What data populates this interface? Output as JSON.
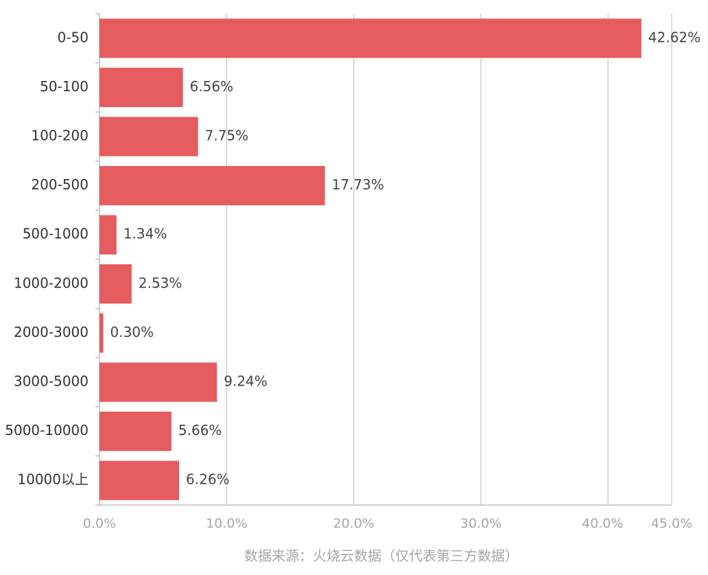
{
  "chart_data": {
    "type": "bar",
    "orientation": "horizontal",
    "categories": [
      "0-50",
      "50-100",
      "100-200",
      "200-500",
      "500-1000",
      "1000-2000",
      "2000-3000",
      "3000-5000",
      "5000-10000",
      "10000以上"
    ],
    "values": [
      42.62,
      6.56,
      7.75,
      17.73,
      1.34,
      2.53,
      0.3,
      9.24,
      5.66,
      6.26
    ],
    "value_labels": [
      "42.62%",
      "6.56%",
      "7.75%",
      "17.73%",
      "1.34%",
      "2.53%",
      "0.30%",
      "9.24%",
      "5.66%",
      "6.26%"
    ],
    "xlim": [
      0,
      45
    ],
    "xticks": [
      0,
      10,
      20,
      30,
      40,
      45
    ],
    "xtick_labels": [
      "0.0%",
      "10.0%",
      "20.0%",
      "30.0%",
      "40.0%",
      "45.0%"
    ],
    "grid": true,
    "bar_color": "#e55c5e",
    "source": "数据来源：火烧云数据（仅代表第三方数据）"
  }
}
